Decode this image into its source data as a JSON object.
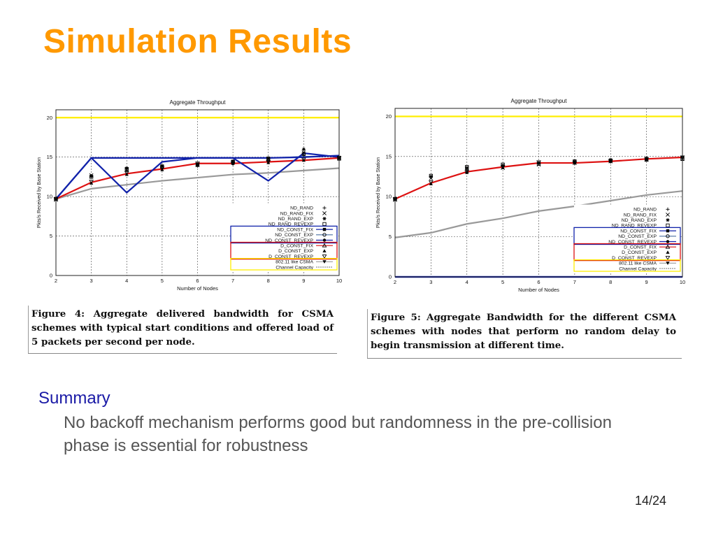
{
  "slide": {
    "title": "Simulation Results",
    "summary_heading": "Summary",
    "summary_text": "No backoff mechanism performs good but randomness in the pre-collision phase is essential for robustness",
    "page_number": "14/24"
  },
  "captions": {
    "left": "Figure 4: Aggregate delivered bandwidth for CSMA schemes with typical start conditions and offered load of 5 packets per second per node.",
    "right": "Figure 5: Aggregate Bandwidth for the different CSMA schemes with nodes that perform no random delay to begin transmission at different time."
  },
  "colors": {
    "title": "#ff9900",
    "summary_heading": "#1a1aa6",
    "red_line": "#dd1111",
    "blue_line": "#1122aa",
    "gray_line": "#999999",
    "capacity_line": "#ffee00"
  },
  "chart_data": [
    {
      "type": "line",
      "title": "Aggregate Throughput",
      "xlabel": "Number of Nodes",
      "ylabel": "Pkts/s Received by Base Station",
      "x": [
        2,
        3,
        4,
        5,
        6,
        7,
        8,
        9,
        10
      ],
      "xlim": [
        2,
        10
      ],
      "ylim": [
        0,
        21
      ],
      "xticks": [
        2,
        3,
        4,
        5,
        6,
        7,
        8,
        9,
        10
      ],
      "yticks": [
        0,
        5,
        10,
        15,
        20
      ],
      "grid": true,
      "legend_position": "bottom-right",
      "series": [
        {
          "name": "ND_RAND",
          "marker": "+",
          "values": [
            9.7,
            12.5,
            13.2,
            13.6,
            13.9,
            14.3,
            14.6,
            15.3,
            14.7
          ]
        },
        {
          "name": "ND_RAND_FIX",
          "marker": "×",
          "values": [
            9.6,
            12.7,
            13.4,
            13.8,
            14.0,
            14.4,
            14.8,
            15.6,
            14.9
          ]
        },
        {
          "name": "ND_RAND_EXP",
          "marker": "*",
          "values": [
            9.8,
            12.6,
            13.6,
            13.9,
            14.1,
            14.5,
            14.9,
            16.0,
            15.0
          ]
        },
        {
          "name": "ND_RAND_REVEXP",
          "marker": "□",
          "values": [
            9.7,
            12.5,
            13.5,
            13.8,
            14.0,
            14.4,
            14.7,
            15.4,
            14.8
          ]
        },
        {
          "name": "ND_CONST_FIX",
          "marker": "■",
          "values": [
            9.7,
            14.9,
            14.9,
            14.9,
            14.9,
            14.9,
            14.9,
            15.0,
            15.2
          ]
        },
        {
          "name": "ND_CONST_EXP",
          "marker": "○",
          "values": [
            9.7,
            14.9,
            14.9,
            14.9,
            14.9,
            14.9,
            14.9,
            15.1,
            15.1
          ]
        },
        {
          "name": "ND_CONST_REVEXP",
          "marker": "●",
          "values": [
            9.7,
            14.9,
            10.5,
            14.4,
            14.9,
            14.9,
            12.0,
            15.5,
            15.0
          ]
        },
        {
          "name": "D_CONST_FIX",
          "marker": "△",
          "values": [
            9.7,
            11.8,
            12.9,
            13.5,
            14.2,
            14.2,
            14.4,
            14.6,
            14.9
          ]
        },
        {
          "name": "D_CONST_EXP",
          "marker": "▲",
          "values": [
            9.7,
            11.7,
            12.8,
            13.4,
            14.1,
            14.2,
            14.3,
            14.6,
            14.9
          ]
        },
        {
          "name": "D_CONST_REVEXP",
          "marker": "▽",
          "values": [
            9.7,
            11.9,
            13.0,
            13.6,
            14.2,
            14.2,
            14.4,
            14.7,
            14.9
          ]
        },
        {
          "name": "802.11 like CSMA",
          "marker": "▼",
          "values": [
            9.7,
            11.0,
            11.5,
            12.0,
            12.4,
            12.8,
            13.0,
            13.3,
            13.6
          ]
        },
        {
          "name": "Channel Capacity",
          "marker": "",
          "values": [
            20,
            20,
            20,
            20,
            20,
            20,
            20,
            20,
            20
          ]
        }
      ]
    },
    {
      "type": "line",
      "title": "Aggregate Throughput",
      "xlabel": "Number of Nodes",
      "ylabel": "Pkts/s Received by Base Station",
      "x": [
        2,
        3,
        4,
        5,
        6,
        7,
        8,
        9,
        10
      ],
      "xlim": [
        2,
        10
      ],
      "ylim": [
        0,
        21
      ],
      "xticks": [
        2,
        3,
        4,
        5,
        6,
        7,
        8,
        9,
        10
      ],
      "yticks": [
        0,
        5,
        10,
        15,
        20
      ],
      "grid": true,
      "legend_position": "bottom-right",
      "series": [
        {
          "name": "ND_RAND",
          "marker": "+",
          "values": [
            9.7,
            12.4,
            13.4,
            13.8,
            14.1,
            14.3,
            14.5,
            14.7,
            14.8
          ]
        },
        {
          "name": "ND_RAND_FIX",
          "marker": "×",
          "values": [
            9.6,
            12.3,
            13.2,
            13.6,
            14.0,
            14.2,
            14.4,
            14.6,
            14.7
          ]
        },
        {
          "name": "ND_RAND_EXP",
          "marker": "*",
          "values": [
            9.8,
            12.5,
            13.6,
            13.9,
            14.2,
            14.4,
            14.6,
            14.8,
            14.9
          ]
        },
        {
          "name": "ND_RAND_REVEXP",
          "marker": "□",
          "values": [
            9.7,
            12.6,
            13.7,
            14.0,
            14.1,
            14.4,
            14.5,
            14.6,
            14.7
          ]
        },
        {
          "name": "ND_CONST_FIX",
          "marker": "■",
          "values": [
            0,
            0,
            0,
            0,
            0,
            0,
            0,
            0,
            0
          ]
        },
        {
          "name": "ND_CONST_EXP",
          "marker": "○",
          "values": [
            0,
            0,
            0,
            0,
            0,
            0,
            0,
            0,
            0
          ]
        },
        {
          "name": "ND_CONST_REVEXP",
          "marker": "●",
          "values": [
            0,
            0,
            0,
            0,
            0,
            0,
            0,
            0,
            0
          ]
        },
        {
          "name": "D_CONST_FIX",
          "marker": "△",
          "values": [
            9.7,
            11.7,
            13.1,
            13.7,
            14.2,
            14.2,
            14.4,
            14.7,
            14.9
          ]
        },
        {
          "name": "D_CONST_EXP",
          "marker": "▲",
          "values": [
            9.7,
            11.6,
            13.0,
            13.6,
            14.2,
            14.2,
            14.4,
            14.7,
            14.9
          ]
        },
        {
          "name": "D_CONST_REVEXP",
          "marker": "▽",
          "values": [
            9.7,
            11.8,
            13.1,
            13.7,
            14.3,
            14.2,
            14.4,
            14.7,
            14.9
          ]
        },
        {
          "name": "802.11 like CSMA",
          "marker": "▼",
          "values": [
            4.9,
            5.5,
            6.6,
            7.3,
            8.2,
            8.8,
            9.5,
            10.2,
            10.7
          ]
        },
        {
          "name": "Channel Capacity",
          "marker": "",
          "values": [
            20,
            20,
            20,
            20,
            20,
            20,
            20,
            20,
            20
          ]
        }
      ]
    }
  ]
}
